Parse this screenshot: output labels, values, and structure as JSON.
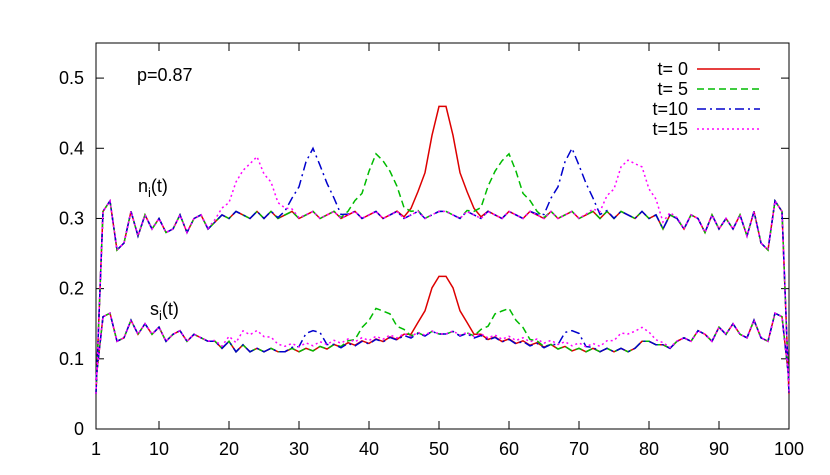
{
  "chart_data": {
    "type": "line",
    "title": "",
    "xlabel": "",
    "ylabel": "",
    "xlim": [
      1,
      100
    ],
    "ylim": [
      0,
      0.55
    ],
    "xticks": [
      1,
      10,
      20,
      30,
      40,
      50,
      60,
      70,
      80,
      90,
      100
    ],
    "yticks": [
      0,
      0.1,
      0.2,
      0.3,
      0.4,
      0.5
    ],
    "ytick_labels": [
      "0",
      "0.1",
      "0.2",
      "0.3",
      "0.4",
      "0.5"
    ],
    "grid": false,
    "legend_position": "top-right",
    "annotations": {
      "param": "p=0.87",
      "n_label": {
        "main": "n",
        "sub": "i",
        "rest": "(t)"
      },
      "s_label": {
        "main": "s",
        "sub": "i",
        "rest": "(t)"
      }
    },
    "x": [
      1,
      2,
      3,
      4,
      5,
      6,
      7,
      8,
      9,
      10,
      11,
      12,
      13,
      14,
      15,
      16,
      17,
      18,
      19,
      20,
      21,
      22,
      23,
      24,
      25,
      26,
      27,
      28,
      29,
      30,
      31,
      32,
      33,
      34,
      35,
      36,
      37,
      38,
      39,
      40,
      41,
      42,
      43,
      44,
      45,
      46,
      47,
      48,
      49,
      50,
      51,
      52,
      53,
      54,
      55,
      56,
      57,
      58,
      59,
      60,
      61,
      62,
      63,
      64,
      65,
      66,
      67,
      68,
      69,
      70,
      71,
      72,
      73,
      74,
      75,
      76,
      77,
      78,
      79,
      80,
      81,
      82,
      83,
      84,
      85,
      86,
      87,
      88,
      89,
      90,
      91,
      92,
      93,
      94,
      95,
      96,
      97,
      98,
      99,
      100
    ],
    "base_n": [
      0.05,
      0.31,
      0.325,
      0.255,
      0.265,
      0.31,
      0.275,
      0.305,
      0.285,
      0.3,
      0.28,
      0.285,
      0.305,
      0.28,
      0.3,
      0.305,
      0.285,
      0.295,
      0.305,
      0.3,
      0.31,
      0.305,
      0.3,
      0.31,
      0.3,
      0.31,
      0.3,
      0.305,
      0.31,
      0.3,
      0.305,
      0.31,
      0.3,
      0.305,
      0.31,
      0.3,
      0.305,
      0.31,
      0.3,
      0.305,
      0.31,
      0.3,
      0.305,
      0.31,
      0.3,
      0.305,
      0.31,
      0.3,
      0.305,
      0.31,
      0.31,
      0.305,
      0.3,
      0.31,
      0.305,
      0.3,
      0.31,
      0.305,
      0.3,
      0.31,
      0.305,
      0.3,
      0.31,
      0.305,
      0.3,
      0.31,
      0.3,
      0.305,
      0.31,
      0.3,
      0.305,
      0.31,
      0.3,
      0.31,
      0.3,
      0.31,
      0.305,
      0.3,
      0.31,
      0.3,
      0.305,
      0.285,
      0.305,
      0.3,
      0.285,
      0.305,
      0.3,
      0.28,
      0.305,
      0.285,
      0.3,
      0.285,
      0.305,
      0.275,
      0.31,
      0.265,
      0.255,
      0.325,
      0.31,
      0.05
    ],
    "base_s": [
      0.07,
      0.16,
      0.165,
      0.125,
      0.13,
      0.155,
      0.135,
      0.15,
      0.135,
      0.145,
      0.125,
      0.135,
      0.14,
      0.125,
      0.135,
      0.13,
      0.125,
      0.125,
      0.115,
      0.125,
      0.11,
      0.12,
      0.11,
      0.115,
      0.11,
      0.115,
      0.11,
      0.11,
      0.115,
      0.11,
      0.115,
      0.11,
      0.115,
      0.11,
      0.115,
      0.11,
      0.115,
      0.11,
      0.115,
      0.11,
      0.115,
      0.11,
      0.115,
      0.11,
      0.115,
      0.11,
      0.115,
      0.11,
      0.115,
      0.11,
      0.11,
      0.115,
      0.11,
      0.115,
      0.11,
      0.115,
      0.11,
      0.115,
      0.11,
      0.115,
      0.11,
      0.115,
      0.11,
      0.115,
      0.11,
      0.115,
      0.11,
      0.115,
      0.11,
      0.115,
      0.11,
      0.115,
      0.11,
      0.115,
      0.11,
      0.115,
      0.11,
      0.115,
      0.125,
      0.125,
      0.12,
      0.12,
      0.115,
      0.125,
      0.13,
      0.125,
      0.14,
      0.135,
      0.125,
      0.145,
      0.135,
      0.15,
      0.135,
      0.13,
      0.155,
      0.13,
      0.125,
      0.165,
      0.16,
      0.07
    ],
    "series": [
      {
        "name": "t=  0",
        "color": "#dd0000",
        "dash": "solid",
        "n": {
          "center": 50.5,
          "width": 1.9,
          "amp": 0.155,
          "outer": [
            38,
            63
          ],
          "ramp": 0.0
        },
        "s": {
          "center": 50.5,
          "width": 1.9,
          "amp": 0.085,
          "outer": [
            31,
            70
          ],
          "ramp": 0.026
        }
      },
      {
        "name": "t=  5",
        "color": "#00bb00",
        "dash": "dashed",
        "n": {
          "center": 41.5,
          "width": 1.9,
          "amp": 0.085,
          "mirror": true,
          "outer": [
            38,
            63
          ],
          "ramp": 0.0
        },
        "s": {
          "center": 41.5,
          "width": 1.9,
          "amp": 0.045,
          "mirror": true,
          "outer": [
            31,
            70
          ],
          "ramp": 0.026
        }
      },
      {
        "name": "t=10",
        "color": "#0000cc",
        "dash": "dashdot",
        "n": {
          "center": 32,
          "width": 1.7,
          "amp": 0.09,
          "mirror": true,
          "outer": [
            32,
            69
          ],
          "ramp": 0.0
        },
        "s": {
          "center": 32,
          "width": 1.2,
          "amp": 0.03,
          "mirror": true,
          "outer": [
            32,
            69
          ],
          "ramp": 0.026
        }
      },
      {
        "name": "t=15",
        "color": "#ff00ff",
        "dash": "dotted",
        "n": {
          "center": 23.5,
          "width": 2.2,
          "amp": 0.08,
          "mirror": true,
          "outer": [
            23,
            78
          ],
          "ramp": 0.0
        },
        "s": {
          "center": 23.5,
          "width": 2.2,
          "amp": 0.025,
          "mirror": true,
          "outer": [
            23,
            78
          ],
          "ramp": 0.026
        }
      }
    ]
  }
}
